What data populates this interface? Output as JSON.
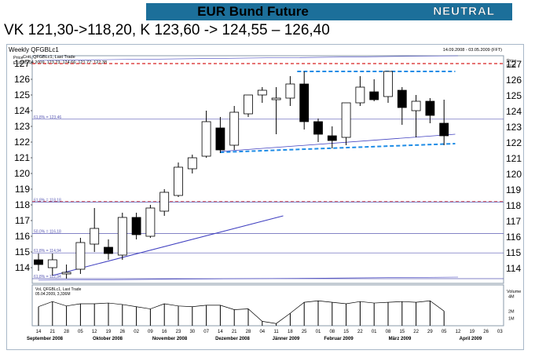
{
  "header": {
    "title": "EUR Bund Future",
    "status": "NEUTRAL",
    "headline": "VK 121,30->118,20, K 123,60 -> 124,55 – 126,40"
  },
  "colors": {
    "title_bar": "#1c6f9a",
    "up_candle": "#ffffff",
    "down_candle": "#000000",
    "fib_line": "#5a5ab4",
    "red_level": "#d82020",
    "blue_dashed": "#1e8ce6",
    "trendline": "#4040c0"
  },
  "chart_data": {
    "type": "candlestick",
    "title": "Weekly QFGBLc1",
    "date_range": "14.09.2008 - 03.05.2009 (FFT)",
    "legend": [
      "Cntt, QFGBLc1, Last Trade",
      "05.04.2009, 123,23; 124,66; 121,77; 122,38"
    ],
    "price_label": "Price EUR",
    "y_axis": {
      "min": 113,
      "max": 127.5,
      "ticks": [
        114,
        115,
        116,
        117,
        118,
        119,
        120,
        121,
        122,
        123,
        124,
        125,
        126,
        127
      ]
    },
    "candles": [
      {
        "o": 114.5,
        "h": 114.9,
        "l": 113.8,
        "c": 114.2
      },
      {
        "o": 114.0,
        "h": 114.9,
        "l": 113.5,
        "c": 114.5
      },
      {
        "o": 113.6,
        "h": 114.2,
        "l": 113.3,
        "c": 113.7
      },
      {
        "o": 113.9,
        "h": 115.9,
        "l": 113.6,
        "c": 115.6
      },
      {
        "o": 115.5,
        "h": 117.8,
        "l": 115.0,
        "c": 116.5
      },
      {
        "o": 115.3,
        "h": 115.8,
        "l": 114.5,
        "c": 114.9
      },
      {
        "o": 114.8,
        "h": 117.5,
        "l": 114.5,
        "c": 117.2
      },
      {
        "o": 117.2,
        "h": 117.5,
        "l": 115.8,
        "c": 116.1
      },
      {
        "o": 116.0,
        "h": 118.0,
        "l": 115.9,
        "c": 117.8
      },
      {
        "o": 117.6,
        "h": 119.0,
        "l": 117.3,
        "c": 118.8
      },
      {
        "o": 118.6,
        "h": 120.7,
        "l": 118.5,
        "c": 120.4
      },
      {
        "o": 120.3,
        "h": 121.2,
        "l": 120.0,
        "c": 121.0
      },
      {
        "o": 121.1,
        "h": 124.0,
        "l": 121.0,
        "c": 123.3
      },
      {
        "o": 122.9,
        "h": 123.6,
        "l": 121.3,
        "c": 121.5
      },
      {
        "o": 121.8,
        "h": 124.3,
        "l": 121.5,
        "c": 123.9
      },
      {
        "o": 123.8,
        "h": 125.0,
        "l": 123.6,
        "c": 125.0
      },
      {
        "o": 125.0,
        "h": 125.5,
        "l": 124.5,
        "c": 125.3
      },
      {
        "o": 124.7,
        "h": 125.5,
        "l": 122.5,
        "c": 124.8
      },
      {
        "o": 124.8,
        "h": 126.2,
        "l": 124.3,
        "c": 125.7
      },
      {
        "o": 125.7,
        "h": 126.5,
        "l": 122.8,
        "c": 123.3
      },
      {
        "o": 123.3,
        "h": 123.5,
        "l": 122.0,
        "c": 122.5
      },
      {
        "o": 122.4,
        "h": 123.0,
        "l": 121.6,
        "c": 122.1
      },
      {
        "o": 122.3,
        "h": 124.5,
        "l": 121.8,
        "c": 124.5
      },
      {
        "o": 124.5,
        "h": 126.2,
        "l": 124.3,
        "c": 125.5
      },
      {
        "o": 125.2,
        "h": 126.0,
        "l": 124.6,
        "c": 124.7
      },
      {
        "o": 124.9,
        "h": 126.5,
        "l": 124.5,
        "c": 126.5
      },
      {
        "o": 125.3,
        "h": 125.5,
        "l": 123.1,
        "c": 124.2
      },
      {
        "o": 124.0,
        "h": 125.0,
        "l": 122.3,
        "c": 124.6
      },
      {
        "o": 124.6,
        "h": 124.8,
        "l": 123.2,
        "c": 123.7
      },
      {
        "o": 123.2,
        "h": 124.7,
        "l": 121.8,
        "c": 122.4
      }
    ],
    "fib_levels": [
      {
        "label": "61,8% = 123,46",
        "value": 123.46
      },
      {
        "label": "61,8% = 118,18",
        "value": 118.18
      },
      {
        "label": "50,0% = 116,18",
        "value": 116.18
      },
      {
        "label": "61,8% = 114,94",
        "value": 114.94
      },
      {
        "label": "61,8% = 112,94",
        "value": 113.3
      }
    ],
    "red_levels": [
      127.0,
      118.2
    ],
    "volume": {
      "legend": [
        "Vol, QFGBLc1, Last Trade",
        "05.04.2009, 3,336M"
      ],
      "label": "Volume",
      "ticks": [
        "4M",
        "2M",
        "1M"
      ],
      "values": [
        2.6,
        3.3,
        2.7,
        3.0,
        3.0,
        3.1,
        2.9,
        2.6,
        2.3,
        3.0,
        2.7,
        2.6,
        2.8,
        2.8,
        2.2,
        2.3,
        0.6,
        0.3,
        1.7,
        3.2,
        3.4,
        3.2,
        3.0,
        3.3,
        3.1,
        3.2,
        3.3,
        3.2,
        3.4,
        2.0
      ]
    },
    "x_labels": [
      "14",
      "21",
      "28",
      "05",
      "12",
      "19",
      "26",
      "02",
      "09",
      "16",
      "23",
      "30",
      "07",
      "14",
      "21",
      "28",
      "04",
      "11",
      "18",
      "25",
      "01",
      "08",
      "15",
      "22",
      "01",
      "08",
      "15",
      "22",
      "29",
      "05",
      "12",
      "19",
      "26",
      "03"
    ],
    "months": [
      "September 2008",
      "Oktober 2008",
      "November 2008",
      "Dezember 2008",
      "Jänner 2009",
      "Februar 2009",
      "März 2009",
      "April 2009"
    ]
  }
}
